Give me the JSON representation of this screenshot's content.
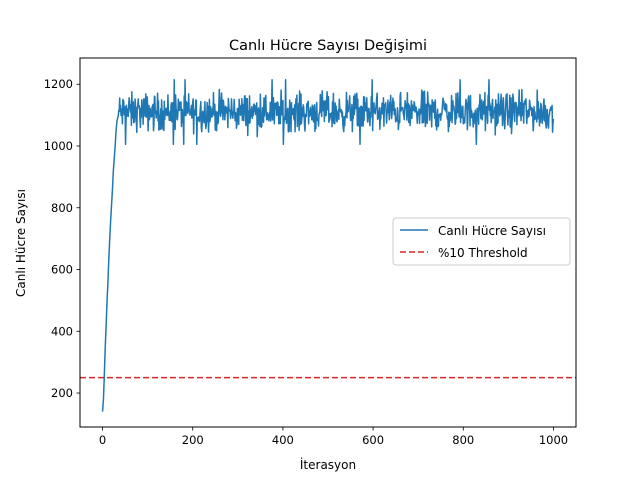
{
  "chart_data": {
    "type": "line",
    "title": "Canlı Hücre Sayısı Değişimi",
    "xlabel": "İterasyon",
    "ylabel": "Canlı Hücre Sayısı",
    "xlim": [
      -50,
      1050
    ],
    "ylim": [
      90,
      1285
    ],
    "xticks": [
      0,
      200,
      400,
      600,
      800,
      1000
    ],
    "yticks": [
      200,
      400,
      600,
      800,
      1000,
      1200
    ],
    "grid": false,
    "legend_position": "center-right",
    "series": [
      {
        "name": "Canlı Hücre Sayısı",
        "color": "#1f77b4",
        "style": "solid",
        "ramp": [
          [
            0,
            140
          ],
          [
            2,
            180
          ],
          [
            4,
            260
          ],
          [
            6,
            350
          ],
          [
            8,
            420
          ],
          [
            10,
            500
          ],
          [
            12,
            560
          ],
          [
            14,
            640
          ],
          [
            16,
            700
          ],
          [
            18,
            760
          ],
          [
            20,
            810
          ],
          [
            22,
            860
          ],
          [
            24,
            920
          ],
          [
            26,
            960
          ],
          [
            28,
            1000
          ],
          [
            30,
            1050
          ],
          [
            32,
            1080
          ],
          [
            35,
            1100
          ]
        ],
        "plateau": {
          "x_start": 35,
          "x_end": 1000,
          "mean": 1110,
          "amplitude": 55,
          "min": 980,
          "max": 1235
        }
      },
      {
        "name": "%10 Threshold",
        "color": "#d62728",
        "style": "dashed",
        "y": 250
      }
    ]
  }
}
